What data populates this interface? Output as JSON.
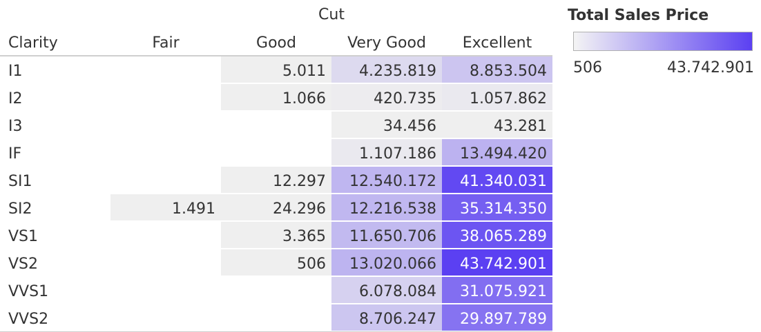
{
  "chart_data": {
    "type": "heatmap",
    "column_header": "Cut",
    "row_header": "Clarity",
    "columns": [
      "Fair",
      "Good",
      "Very Good",
      "Excellent"
    ],
    "rows": [
      "I1",
      "I2",
      "I3",
      "IF",
      "SI1",
      "SI2",
      "VS1",
      "VS2",
      "VVS1",
      "VVS2"
    ],
    "values": [
      [
        null,
        5011,
        4235819,
        8853504
      ],
      [
        null,
        1066,
        420735,
        1057862
      ],
      [
        null,
        null,
        34456,
        43281
      ],
      [
        null,
        null,
        1107186,
        13494420
      ],
      [
        null,
        12297,
        12540172,
        41340031
      ],
      [
        1491,
        24296,
        12216538,
        35314350
      ],
      [
        null,
        3365,
        11650706,
        38065289
      ],
      [
        null,
        506,
        13020066,
        43742901
      ],
      [
        null,
        null,
        6078084,
        31075921
      ],
      [
        null,
        null,
        8706247,
        29897789
      ]
    ],
    "value_labels": [
      [
        "",
        "5.011",
        "4.235.819",
        "8.853.504"
      ],
      [
        "",
        "1.066",
        "420.735",
        "1.057.862"
      ],
      [
        "",
        "",
        "34.456",
        "43.281"
      ],
      [
        "",
        "",
        "1.107.186",
        "13.494.420"
      ],
      [
        "",
        "12.297",
        "12.540.172",
        "41.340.031"
      ],
      [
        "1.491",
        "24.296",
        "12.216.538",
        "35.314.350"
      ],
      [
        "",
        "3.365",
        "11.650.706",
        "38.065.289"
      ],
      [
        "",
        "506",
        "13.020.066",
        "43.742.901"
      ],
      [
        "",
        "",
        "6.078.084",
        "31.075.921"
      ],
      [
        "",
        "",
        "8.706.247",
        "29.897.789"
      ]
    ],
    "color_scale": {
      "min": 506,
      "max": 43742901,
      "low_color": "#efefef",
      "high_color": "#5b40f2"
    },
    "legend": {
      "title": "Total Sales Price",
      "min_label": "506",
      "max_label": "43.742.901",
      "position": "top-right"
    }
  }
}
